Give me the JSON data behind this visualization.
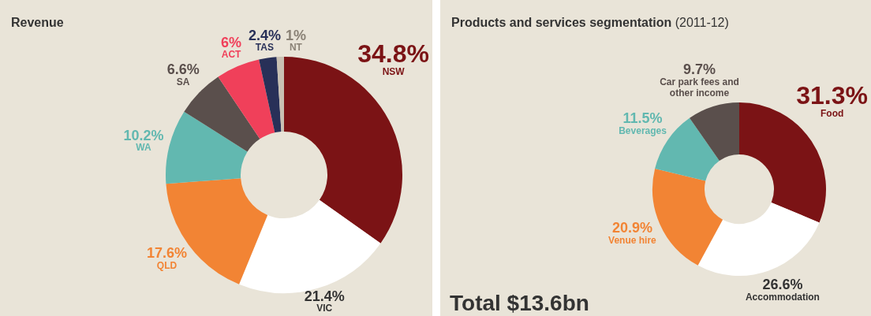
{
  "chart_data": [
    {
      "type": "donut",
      "title": "Revenue",
      "categories": [
        "NSW",
        "VIC",
        "QLD",
        "WA",
        "SA",
        "ACT",
        "TAS",
        "NT"
      ],
      "values": [
        34.8,
        21.4,
        17.6,
        10.2,
        6.6,
        6,
        2.4,
        1
      ],
      "colors": [
        "#7b1315",
        "#ffffff",
        "#f28434",
        "#62b8b0",
        "#5a4f4c",
        "#f0405a",
        "#283058",
        "#c9c1b3"
      ],
      "value_labels": [
        "34.8%",
        "21.4%",
        "17.6%",
        "10.2%",
        "6.6%",
        "6%",
        "2.4%",
        "1%"
      ],
      "legend": false
    },
    {
      "type": "donut",
      "title": "Products and services segmentation",
      "subtitle": "(2011-12)",
      "categories": [
        "Food",
        "Accommodation",
        "Venue hire",
        "Beverages",
        "Car park fees and other income"
      ],
      "values": [
        31.3,
        26.6,
        20.9,
        11.5,
        9.7
      ],
      "colors": [
        "#7b1315",
        "#ffffff",
        "#f28434",
        "#62b8b0",
        "#5a4f4c"
      ],
      "value_labels": [
        "31.3%",
        "26.6%",
        "20.9%",
        "11.5%",
        "9.7%"
      ],
      "annotations": [
        "Total $13.6bn"
      ],
      "legend": false
    }
  ]
}
